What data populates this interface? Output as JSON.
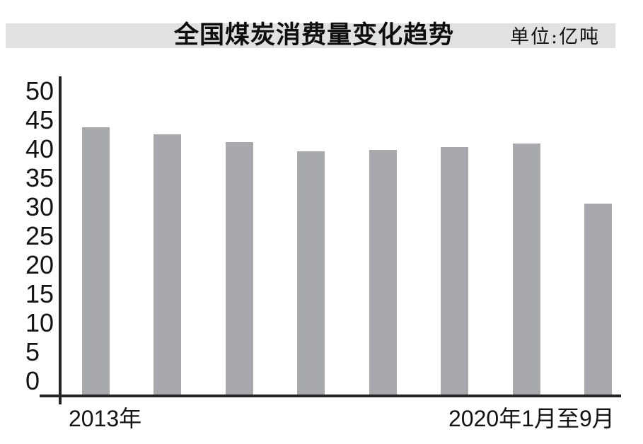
{
  "header": {
    "title": "全国煤炭消费量变化趋势",
    "unit_label": "单位:亿吨"
  },
  "chart_data": {
    "type": "bar",
    "title": "全国煤炭消费量变化趋势",
    "unit": "亿吨",
    "categories": [
      "2013年",
      "",
      "",
      "",
      "",
      "",
      "",
      "2020年1月至9月"
    ],
    "values": [
      43.5,
      42.3,
      41.0,
      39.5,
      39.8,
      40.2,
      40.8,
      31.0
    ],
    "ylim": [
      0,
      50
    ],
    "yticks": [
      0,
      5,
      10,
      15,
      20,
      25,
      30,
      35,
      40,
      45,
      50
    ],
    "ytick_step": 5,
    "xlabel": "",
    "ylabel": "",
    "grid": false,
    "legend": false,
    "bar_color": "#a7a9ac",
    "axis_color": "#252525",
    "band_color": "#e0e1e3"
  }
}
